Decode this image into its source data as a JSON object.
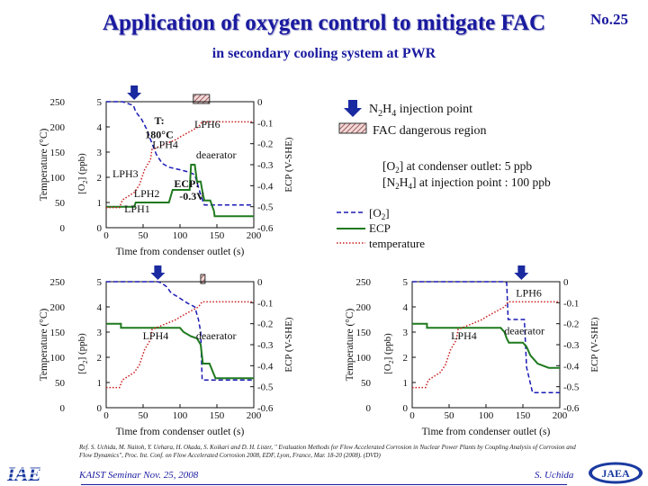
{
  "slide": {
    "title": "Application of oxygen control to mitigate FAC",
    "number": "No.25",
    "subtitle": "in secondary cooling system at PWR",
    "reference_lines": [
      "Ref. S. Uchida, M. Naitoh, Y. Uehara, H. Okada, S. Koikari and D. H. Lister, \" Evaluation Methods for Flow Accelerated Corrosion in Nuclear Power Plants by Coupling Analysis of Corrosion and",
      "Flow Dynamics\", Proc. Int. Conf. on Flow Accelerated Corrosion 2008, EDF, Lyon, France, Mar. 18-20 (2008). (DVD)"
    ],
    "seminar": "KAIST Seminar  Nov. 25, 2008",
    "author": "S. Uchida",
    "logo_left": "IAE",
    "logo_right": "JAEA"
  },
  "legend": {
    "injection": "N2H4 injection point",
    "fac_region": "FAC dangerous region",
    "note_line1": "[O2] at condenser outlet: 5 ppb",
    "note_line2": "[N2H4] at injection point : 100 ppb",
    "o2": "[O2]",
    "ecp": "ECP",
    "temperature": "temperature"
  },
  "colors": {
    "title": "#1a1aa0",
    "o2": "#1a1ab4",
    "ecp": "#1f7a1f",
    "temperature": "#c81e1e",
    "fac_hatch": "#c81e1e",
    "injection_arrow": "#1a2aa0"
  },
  "chart_data": [
    {
      "type": "line",
      "panel": "top-left",
      "xlabel": "Time from condenser outlet (s)",
      "xlim": [
        0,
        200
      ],
      "xticks": [
        0,
        50,
        100,
        150,
        200
      ],
      "y_temp_label": "Temperature (°C)",
      "y_temp_ticks": [
        0,
        50,
        100,
        150,
        200,
        250
      ],
      "y_o2_label": "[O2] (ppb)",
      "y_o2_ticks": [
        0,
        1,
        2,
        3,
        4,
        5
      ],
      "y_ecp_label": "ECP (V-SHE)",
      "y_ecp_ticks": [
        0,
        -0.1,
        -0.2,
        -0.3,
        -0.4,
        -0.5,
        -0.6
      ],
      "injection_x": 38,
      "fac_region": [
        118,
        140
      ],
      "annotations": [
        {
          "text": "T:",
          "x": 72,
          "o2": 4.25
        },
        {
          "text": "180°C",
          "x": 72,
          "o2": 3.7
        },
        {
          "text": "LPH6",
          "x": 137,
          "o2": 4.1
        },
        {
          "text": "LPH4",
          "x": 80,
          "o2": 3.3
        },
        {
          "text": "deaerator",
          "x": 149,
          "o2": 2.9
        },
        {
          "text": "LPH3",
          "x": 26,
          "o2": 2.15
        },
        {
          "text": "ECP:",
          "x": 109,
          "o2": 1.75
        },
        {
          "text": "LPH2",
          "x": 55,
          "o2": 1.35
        },
        {
          "text": "-0.3V",
          "x": 116,
          "o2": 1.25
        },
        {
          "text": "LPH1",
          "x": 42,
          "o2": 0.75
        }
      ],
      "series": [
        {
          "name": "[O2]",
          "axis": "o2",
          "x": [
            0,
            22,
            27,
            37,
            40,
            48,
            55,
            60,
            68,
            76,
            85,
            100,
            113,
            120,
            124,
            128,
            133,
            200
          ],
          "y": [
            5,
            5,
            4.95,
            4.85,
            4.6,
            4.3,
            3.9,
            3.5,
            2.9,
            2.55,
            2.4,
            2.3,
            2.2,
            2.1,
            1.7,
            1.3,
            0.9,
            0.9
          ]
        },
        {
          "name": "ECP",
          "axis": "ecp",
          "x": [
            0,
            22,
            33,
            38,
            40,
            85,
            90,
            113,
            115,
            120,
            123,
            128,
            131,
            133,
            141,
            146,
            147,
            200
          ],
          "y": [
            -0.5,
            -0.5,
            -0.5,
            -0.5,
            -0.48,
            -0.48,
            -0.42,
            -0.42,
            -0.3,
            -0.3,
            -0.38,
            -0.38,
            -0.44,
            -0.47,
            -0.47,
            -0.52,
            -0.545,
            -0.545
          ]
        },
        {
          "name": "temperature",
          "axis": "temp",
          "x": [
            0,
            18,
            22,
            38,
            45,
            52,
            60,
            62,
            95,
            100,
            125,
            130,
            200
          ],
          "y": [
            40,
            40,
            55,
            70,
            85,
            115,
            135,
            155,
            175,
            180,
            200,
            210,
            210
          ]
        }
      ]
    },
    {
      "type": "line",
      "panel": "bottom-left",
      "xlabel": "Time from condenser outlet (s)",
      "xlim": [
        0,
        200
      ],
      "xticks": [
        0,
        50,
        100,
        150,
        200
      ],
      "y_temp_label": "Temperature (°C)",
      "y_temp_ticks": [
        0,
        50,
        100,
        150,
        200,
        250
      ],
      "y_o2_label": "[O2] (ppb)",
      "y_o2_ticks": [
        0,
        1,
        2,
        3,
        4,
        5
      ],
      "y_ecp_label": "ECP (V-SHE)",
      "y_ecp_ticks": [
        0,
        -0.1,
        -0.2,
        -0.3,
        -0.4,
        -0.5,
        -0.6
      ],
      "injection_x": 70,
      "fac_region": [
        128,
        134
      ],
      "annotations": [
        {
          "text": "LPH4",
          "x": 67,
          "o2": 2.85
        },
        {
          "text": "deaerator",
          "x": 149,
          "o2": 2.85
        }
      ],
      "series": [
        {
          "name": "[O2]",
          "axis": "o2",
          "x": [
            0,
            70,
            75,
            82,
            88,
            97,
            110,
            120,
            125,
            128,
            130,
            200
          ],
          "y": [
            5,
            5,
            4.95,
            4.8,
            4.55,
            4.4,
            4.15,
            4.0,
            3.5,
            3.0,
            1.1,
            1.1
          ]
        },
        {
          "name": "ECP",
          "axis": "ecp",
          "x": [
            0,
            20,
            20,
            70,
            80,
            100,
            105,
            115,
            123,
            128,
            131,
            140,
            148,
            200
          ],
          "y": [
            -0.2,
            -0.2,
            -0.22,
            -0.22,
            -0.22,
            -0.22,
            -0.24,
            -0.26,
            -0.27,
            -0.3,
            -0.39,
            -0.39,
            -0.46,
            -0.46
          ]
        },
        {
          "name": "temperature",
          "axis": "temp",
          "x": [
            0,
            18,
            22,
            38,
            45,
            52,
            60,
            62,
            95,
            100,
            125,
            130,
            200
          ],
          "y": [
            40,
            40,
            55,
            70,
            85,
            115,
            135,
            155,
            175,
            180,
            200,
            210,
            210
          ]
        }
      ]
    },
    {
      "type": "line",
      "panel": "bottom-right",
      "xlabel": "Time from condenser outlet (s)",
      "xlim": [
        0,
        200
      ],
      "xticks": [
        0,
        50,
        100,
        150,
        200
      ],
      "y_temp_label": "Temperature (°C)",
      "y_temp_ticks": [
        0,
        50,
        100,
        150,
        200,
        250
      ],
      "y_o2_label": "[O2] (ppb)",
      "y_o2_ticks": [
        0,
        1,
        2,
        3,
        4,
        5
      ],
      "y_ecp_label": "ECP (V-SHE)",
      "y_ecp_ticks": [
        0,
        -0.1,
        -0.2,
        -0.3,
        -0.4,
        -0.5,
        -0.6
      ],
      "injection_x": 148,
      "annotations": [
        {
          "text": "LPH6",
          "x": 158,
          "o2": 4.55
        },
        {
          "text": "LPH4",
          "x": 70,
          "o2": 2.85
        },
        {
          "text": "deaerator",
          "x": 152,
          "o2": 3.05
        }
      ],
      "series": [
        {
          "name": "[O2]",
          "axis": "o2",
          "x": [
            0,
            100,
            126,
            128,
            130,
            148,
            152,
            155,
            163,
            200
          ],
          "y": [
            5,
            5,
            5,
            4.95,
            3.5,
            3.5,
            3.5,
            1.6,
            0.6,
            0.6
          ]
        },
        {
          "name": "ECP",
          "axis": "ecp",
          "x": [
            0,
            20,
            20,
            120,
            125,
            128,
            131,
            148,
            150,
            155,
            160,
            170,
            185,
            200
          ],
          "y": [
            -0.2,
            -0.2,
            -0.22,
            -0.22,
            -0.24,
            -0.27,
            -0.29,
            -0.29,
            -0.29,
            -0.31,
            -0.35,
            -0.39,
            -0.41,
            -0.41
          ]
        },
        {
          "name": "temperature",
          "axis": "temp",
          "x": [
            0,
            18,
            22,
            38,
            45,
            52,
            60,
            62,
            95,
            100,
            125,
            130,
            200
          ],
          "y": [
            40,
            40,
            55,
            70,
            85,
            115,
            135,
            155,
            175,
            180,
            200,
            210,
            210
          ]
        }
      ]
    }
  ]
}
